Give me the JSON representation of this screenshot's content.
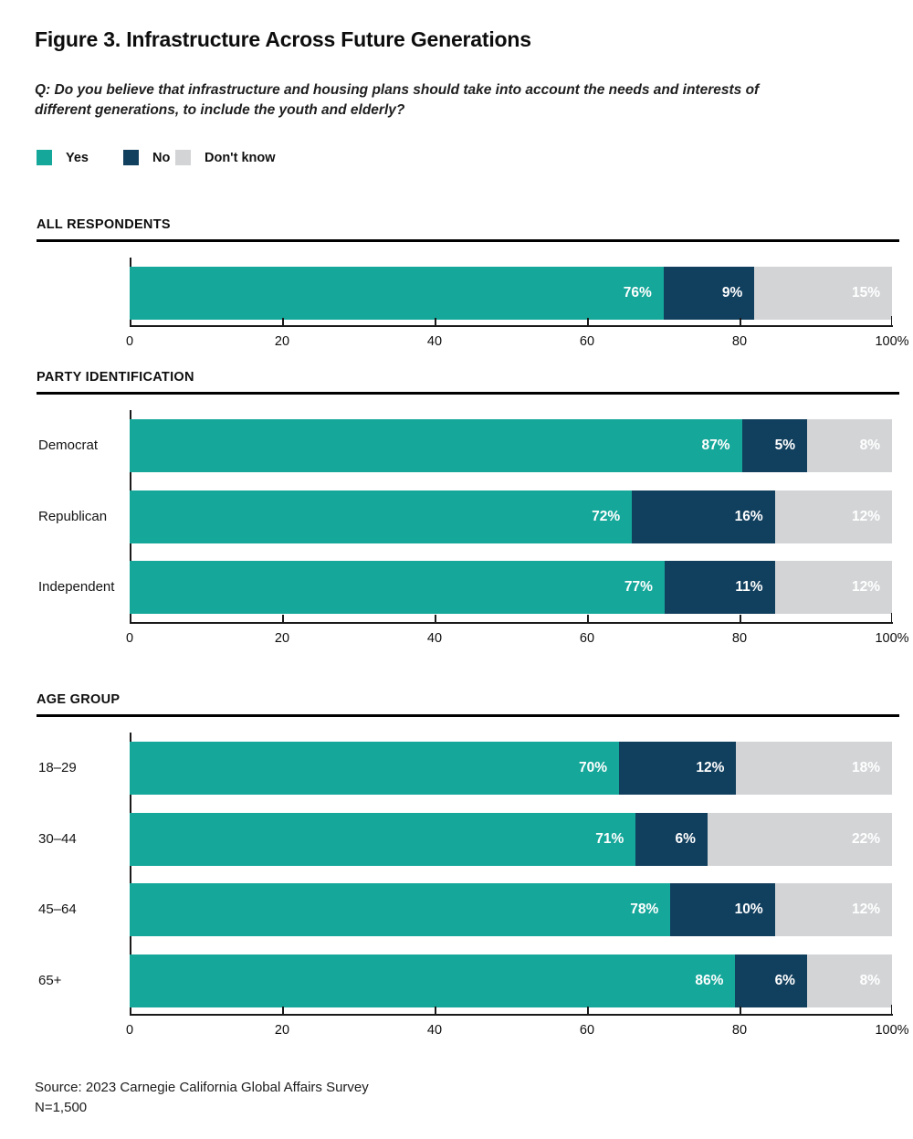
{
  "header": {
    "title": "Figure 3. Infrastructure Across Future Generations",
    "question": "Q: Do you believe that infrastructure and housing plans should take into account the needs and interests of different generations, to include the youth and elderly?"
  },
  "legend": {
    "items": [
      {
        "label": "Yes",
        "color": "#15A79A"
      },
      {
        "label": "No",
        "color": "#113F5E"
      },
      {
        "label": "Don't know",
        "color": "#D2D4D6"
      }
    ]
  },
  "colors": {
    "yes": "#15A79A",
    "no": "#113F5E",
    "dont_know": "#D2D4D6",
    "rule": "#000000"
  },
  "chart_data": {
    "type": "bar",
    "orientation": "horizontal",
    "stacked": true,
    "unit": "%",
    "axis": {
      "min": 0,
      "max": 100,
      "tick_values": [
        0,
        20,
        40,
        60,
        80,
        100
      ],
      "tick_labels": [
        "0",
        "20",
        "40",
        "60",
        "80",
        "100%"
      ]
    },
    "series_names": [
      "Yes",
      "No",
      "Don't know"
    ],
    "sections": [
      {
        "title": "ALL RESPONDENTS",
        "rows": [
          {
            "label": "",
            "values": [
              76,
              9,
              15
            ],
            "labels": [
              "76%",
              "9%",
              "15%"
            ]
          }
        ]
      },
      {
        "title": "PARTY IDENTIFICATION",
        "rows": [
          {
            "label": "Democrat",
            "values": [
              87,
              5,
              8
            ],
            "labels": [
              "87%",
              "5%",
              "8%"
            ]
          },
          {
            "label": "Republican",
            "values": [
              72,
              16,
              12
            ],
            "labels": [
              "72%",
              "16%",
              "12%"
            ]
          },
          {
            "label": "Independent",
            "values": [
              77,
              11,
              12
            ],
            "labels": [
              "77%",
              "11%",
              "12%"
            ]
          }
        ]
      },
      {
        "title": "AGE GROUP",
        "rows": [
          {
            "label": "18–29",
            "values": [
              70,
              12,
              18
            ],
            "labels": [
              "70%",
              "12%",
              "18%"
            ]
          },
          {
            "label": "30–44",
            "values": [
              71,
              6,
              22
            ],
            "labels": [
              "71%",
              "6%",
              "22%"
            ]
          },
          {
            "label": "45–64",
            "values": [
              78,
              10,
              12
            ],
            "labels": [
              "78%",
              "10%",
              "12%"
            ]
          },
          {
            "label": "65+",
            "values": [
              86,
              6,
              8
            ],
            "labels": [
              "86%",
              "6%",
              "8%"
            ]
          }
        ]
      }
    ]
  },
  "footer": {
    "source": "Source: 2023 Carnegie California Global Affairs Survey",
    "sample": "N=1,500"
  }
}
